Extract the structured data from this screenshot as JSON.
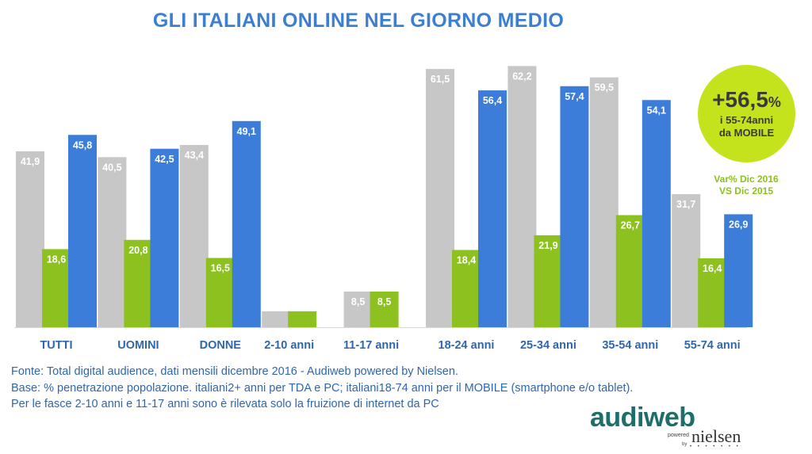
{
  "title": "GLI ITALIANI ONLINE NEL GIORNO MEDIO",
  "chart_data": {
    "type": "bar",
    "categories": [
      "TUTTI",
      "UOMINI",
      "DONNE",
      "2-10 anni",
      "11-17 anni",
      "18-24 anni",
      "25-34 anni",
      "35-54 anni",
      "55-74 anni"
    ],
    "series": [
      {
        "color": "#C7C7C7",
        "values": [
          41.9,
          40.5,
          43.4,
          3.8,
          8.5,
          61.5,
          62.2,
          59.5,
          31.7
        ],
        "labels": [
          "41,9",
          "40,5",
          "43,4",
          "",
          "8,5",
          "61,5",
          "62,2",
          "59,5",
          "31,7"
        ]
      },
      {
        "color": "#8CC11F",
        "values": [
          18.6,
          20.8,
          16.5,
          3.8,
          8.5,
          18.4,
          21.9,
          26.7,
          16.4
        ],
        "labels": [
          "18,6",
          "20,8",
          "16,5",
          "",
          "8,5",
          "18,4",
          "21,9",
          "26,7",
          "16,4"
        ]
      },
      {
        "color": "#3B7DD8",
        "values": [
          45.8,
          42.5,
          49.1,
          null,
          null,
          56.4,
          57.4,
          54.1,
          26.9
        ],
        "labels": [
          "45,8",
          "42,5",
          "49,1",
          "",
          "",
          "56,4",
          "57,4",
          "54,1",
          "26,9"
        ]
      }
    ],
    "ylim": [
      0,
      66
    ],
    "grid": false,
    "legend": "none",
    "category_label_color": "#2F66AE",
    "value_label_color": "#ffffff"
  },
  "badge": {
    "value": "+56,5",
    "unit": "%",
    "line1": "i 55-74anni",
    "line2": "da MOBILE",
    "color": "#C4E31C"
  },
  "var_note": {
    "line1": "Var% Dic 2016",
    "line2": "VS Dic 2015"
  },
  "notes": {
    "line1": "Fonte: Total digital audience, dati mensili dicembre 2016 - Audiweb powered by Nielsen.",
    "line2": "Base: % penetrazione popolazione. italiani2+ anni per TDA e PC; italiani18-74 anni per il MOBILE (smartphone e/o tablet).",
    "line3": "Per le fasce 2-10 anni e 11-17 anni sono è rilevata solo la fruizione di internet da PC"
  },
  "logo": {
    "word": "audiweb",
    "powered": "powered",
    "by": "by",
    "brand": "nielsen"
  }
}
